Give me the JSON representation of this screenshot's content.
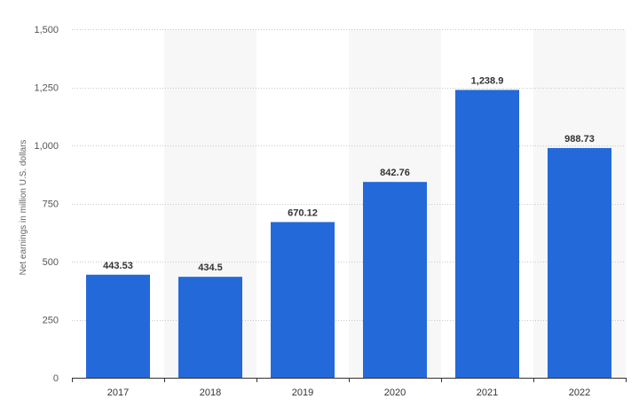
{
  "chart_data": {
    "type": "bar",
    "categories": [
      "2017",
      "2018",
      "2019",
      "2020",
      "2021",
      "2022"
    ],
    "values": [
      443.53,
      434.5,
      670.12,
      842.76,
      1238.9,
      988.73
    ],
    "value_labels": [
      "443.53",
      "434.5",
      "670.12",
      "842.76",
      "1,238.9",
      "988.73"
    ],
    "title": "",
    "xlabel": "",
    "ylabel": "Net earnings in million U.S. dollars",
    "ylim": [
      0,
      1500
    ],
    "yticks": [
      0,
      250,
      500,
      750,
      1000,
      1250,
      1500
    ],
    "ytick_labels": [
      "0",
      "250",
      "500",
      "750",
      "1,000",
      "1,250",
      "1,500"
    ],
    "grid": true,
    "legend": "none",
    "colors": {
      "bar": "#2369d9",
      "band": "#f7f7f7",
      "grid": "#c8c8c8",
      "axis": "#333333"
    }
  }
}
